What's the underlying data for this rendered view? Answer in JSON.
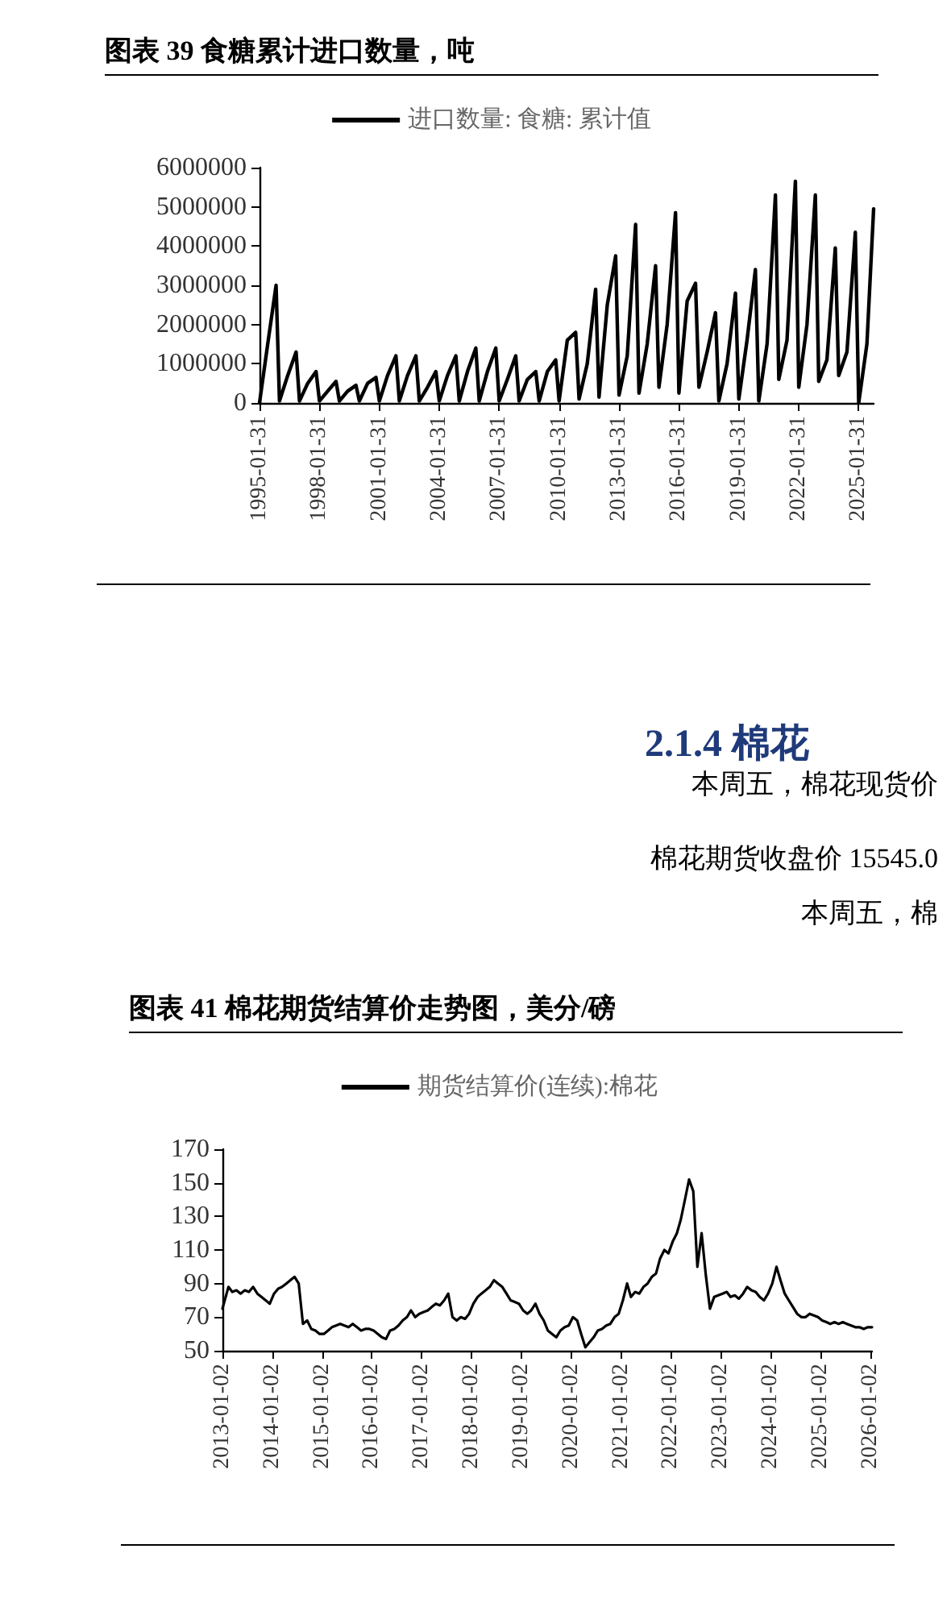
{
  "chart_data": [
    {
      "type": "line",
      "title": "图表 39 食糖累计进口数量，吨",
      "legend": "top",
      "grid": false,
      "marker": "none",
      "line_style": "solid",
      "xlim": [
        "1995-01-31",
        "2025-10-31"
      ],
      "xticks": [
        "1995-01-31",
        "1998-01-31",
        "2001-01-31",
        "2004-01-31",
        "2007-01-31",
        "2010-01-31",
        "2013-01-31",
        "2016-01-31",
        "2019-01-31",
        "2022-01-31",
        "2025-01-31"
      ],
      "ylim": [
        0,
        6000000
      ],
      "yticks": [
        0,
        1000000,
        2000000,
        3000000,
        4000000,
        5000000,
        6000000
      ],
      "series": [
        {
          "name": "进口数量: 食糖: 累计值",
          "color": "#000000",
          "x": [
            "1995-01-31",
            "1995-06-30",
            "1995-11-30",
            "1996-01-31",
            "1996-06-30",
            "1996-11-30",
            "1997-01-31",
            "1997-06-30",
            "1997-11-30",
            "1998-01-31",
            "1998-06-30",
            "1998-11-30",
            "1999-01-31",
            "1999-06-30",
            "1999-11-30",
            "2000-01-31",
            "2000-06-30",
            "2000-11-30",
            "2001-01-31",
            "2001-06-30",
            "2001-11-30",
            "2002-01-31",
            "2002-06-30",
            "2002-11-30",
            "2003-01-31",
            "2003-06-30",
            "2003-11-30",
            "2004-01-31",
            "2004-06-30",
            "2004-11-30",
            "2005-01-31",
            "2005-06-30",
            "2005-11-30",
            "2006-01-31",
            "2006-06-30",
            "2006-11-30",
            "2007-01-31",
            "2007-06-30",
            "2007-11-30",
            "2008-01-31",
            "2008-06-30",
            "2008-11-30",
            "2009-01-31",
            "2009-06-30",
            "2009-11-30",
            "2010-01-31",
            "2010-06-30",
            "2010-11-30",
            "2011-01-31",
            "2011-06-30",
            "2011-11-30",
            "2012-01-31",
            "2012-06-30",
            "2012-11-30",
            "2013-01-31",
            "2013-06-30",
            "2013-11-30",
            "2014-01-31",
            "2014-06-30",
            "2014-11-30",
            "2015-01-31",
            "2015-06-30",
            "2015-11-30",
            "2016-01-31",
            "2016-06-30",
            "2016-11-30",
            "2017-01-31",
            "2017-06-30",
            "2017-11-30",
            "2018-01-31",
            "2018-06-30",
            "2018-11-30",
            "2019-01-31",
            "2019-06-30",
            "2019-11-30",
            "2020-01-31",
            "2020-06-30",
            "2020-11-30",
            "2021-01-31",
            "2021-06-30",
            "2021-11-30",
            "2022-01-31",
            "2022-06-30",
            "2022-11-30",
            "2023-01-31",
            "2023-06-30",
            "2023-11-30",
            "2024-01-31",
            "2024-06-30",
            "2024-11-30",
            "2025-01-31",
            "2025-06-30",
            "2025-10-31"
          ],
          "values": [
            0,
            1500000,
            3000000,
            50000,
            700000,
            1300000,
            50000,
            500000,
            800000,
            50000,
            300000,
            550000,
            50000,
            300000,
            450000,
            50000,
            500000,
            650000,
            50000,
            700000,
            1200000,
            50000,
            700000,
            1200000,
            50000,
            400000,
            800000,
            50000,
            700000,
            1200000,
            50000,
            800000,
            1400000,
            50000,
            800000,
            1400000,
            50000,
            600000,
            1200000,
            50000,
            600000,
            800000,
            50000,
            800000,
            1100000,
            50000,
            1600000,
            1800000,
            100000,
            1000000,
            2900000,
            150000,
            2500000,
            3750000,
            200000,
            1200000,
            4550000,
            250000,
            1500000,
            3500000,
            400000,
            2000000,
            4850000,
            250000,
            2600000,
            3050000,
            400000,
            1300000,
            2300000,
            50000,
            1000000,
            2800000,
            100000,
            1600000,
            3400000,
            50000,
            1500000,
            5300000,
            600000,
            1600000,
            5650000,
            400000,
            2000000,
            5300000,
            550000,
            1100000,
            3950000,
            700000,
            1300000,
            4350000,
            0,
            1500000,
            4950000
          ]
        }
      ]
    },
    {
      "type": "other",
      "title": "2.1.4 棉花",
      "annotations": [
        "本周五，棉花现货价",
        "棉花期货收盘价 15545.0",
        "本周五，棉"
      ]
    },
    {
      "type": "line",
      "title": "图表 41 棉花期货结算价走势图，美分/磅",
      "legend": "top",
      "grid": false,
      "marker": "none",
      "line_style": "solid",
      "xlim": [
        "2013-01-02",
        "2026-01-15"
      ],
      "xticks": [
        "2013-01-02",
        "2014-01-02",
        "2015-01-02",
        "2016-01-02",
        "2017-01-02",
        "2018-01-02",
        "2019-01-02",
        "2020-01-02",
        "2021-01-02",
        "2022-01-02",
        "2023-01-02",
        "2024-01-02",
        "2025-01-02",
        "2026-01-02"
      ],
      "ylim": [
        50,
        170
      ],
      "yticks": [
        50,
        70,
        90,
        110,
        130,
        150,
        170
      ],
      "series": [
        {
          "name": "期货结算价(连续):棉花",
          "color": "#000000",
          "x": [
            "2013-01-02",
            "2013-02-15",
            "2013-03-15",
            "2013-04-15",
            "2013-05-15",
            "2013-06-15",
            "2013-07-15",
            "2013-08-15",
            "2013-09-15",
            "2013-10-15",
            "2013-11-15",
            "2013-12-15",
            "2014-01-15",
            "2014-02-15",
            "2014-03-15",
            "2014-04-15",
            "2014-05-15",
            "2014-06-15",
            "2014-07-15",
            "2014-08-15",
            "2014-09-15",
            "2014-10-15",
            "2014-11-15",
            "2014-12-15",
            "2015-01-15",
            "2015-02-15",
            "2015-03-15",
            "2015-04-15",
            "2015-05-15",
            "2015-06-15",
            "2015-07-15",
            "2015-08-15",
            "2015-09-15",
            "2015-10-15",
            "2015-11-15",
            "2015-12-15",
            "2016-01-15",
            "2016-02-15",
            "2016-03-15",
            "2016-04-15",
            "2016-05-15",
            "2016-06-15",
            "2016-07-15",
            "2016-08-15",
            "2016-09-15",
            "2016-10-15",
            "2016-11-15",
            "2016-12-15",
            "2017-01-15",
            "2017-02-15",
            "2017-03-15",
            "2017-04-15",
            "2017-05-15",
            "2017-06-15",
            "2017-07-15",
            "2017-08-15",
            "2017-09-15",
            "2017-10-15",
            "2017-11-15",
            "2017-12-15",
            "2018-01-15",
            "2018-02-15",
            "2018-03-15",
            "2018-04-15",
            "2018-05-15",
            "2018-06-15",
            "2018-07-15",
            "2018-08-15",
            "2018-09-15",
            "2018-10-15",
            "2018-11-15",
            "2018-12-15",
            "2019-01-15",
            "2019-02-15",
            "2019-03-15",
            "2019-04-15",
            "2019-05-15",
            "2019-06-15",
            "2019-07-15",
            "2019-08-15",
            "2019-09-15",
            "2019-10-15",
            "2019-11-15",
            "2019-12-15",
            "2020-01-15",
            "2020-02-15",
            "2020-03-15",
            "2020-04-15",
            "2020-05-15",
            "2020-06-15",
            "2020-07-15",
            "2020-08-15",
            "2020-09-15",
            "2020-10-15",
            "2020-11-15",
            "2020-12-15",
            "2021-01-15",
            "2021-02-15",
            "2021-03-15",
            "2021-04-15",
            "2021-05-15",
            "2021-06-15",
            "2021-07-15",
            "2021-08-15",
            "2021-09-15",
            "2021-10-15",
            "2021-11-15",
            "2021-12-15",
            "2022-01-15",
            "2022-02-15",
            "2022-03-15",
            "2022-04-15",
            "2022-05-15",
            "2022-06-15",
            "2022-07-15",
            "2022-08-15",
            "2022-09-15",
            "2022-10-15",
            "2022-11-15",
            "2022-12-15",
            "2023-01-15",
            "2023-02-15",
            "2023-03-15",
            "2023-04-15",
            "2023-05-15",
            "2023-06-15",
            "2023-07-15",
            "2023-08-15",
            "2023-09-15",
            "2023-10-15",
            "2023-11-15",
            "2023-12-15",
            "2024-01-15",
            "2024-02-15",
            "2024-03-15",
            "2024-04-15",
            "2024-05-15",
            "2024-06-15",
            "2024-07-15",
            "2024-08-15",
            "2024-09-15",
            "2024-10-15",
            "2024-11-15",
            "2024-12-15",
            "2025-01-15",
            "2025-02-15",
            "2025-03-15",
            "2025-04-15",
            "2025-05-15",
            "2025-06-15",
            "2025-07-15",
            "2025-08-15",
            "2025-09-15",
            "2025-10-15",
            "2025-11-15",
            "2025-12-15",
            "2026-01-15"
          ],
          "values": [
            75,
            88,
            85,
            86,
            84,
            86,
            85,
            88,
            84,
            82,
            80,
            78,
            84,
            87,
            88,
            90,
            92,
            94,
            90,
            66,
            68,
            63,
            62,
            60,
            60,
            62,
            64,
            65,
            66,
            65,
            64,
            66,
            64,
            62,
            63,
            63,
            62,
            60,
            58,
            57,
            62,
            63,
            65,
            68,
            70,
            74,
            70,
            72,
            73,
            74,
            76,
            78,
            77,
            80,
            84,
            70,
            68,
            70,
            69,
            72,
            78,
            82,
            84,
            86,
            88,
            92,
            90,
            88,
            84,
            80,
            79,
            78,
            74,
            72,
            74,
            78,
            72,
            68,
            62,
            60,
            58,
            62,
            64,
            65,
            70,
            68,
            60,
            52,
            55,
            58,
            62,
            63,
            65,
            66,
            70,
            72,
            80,
            90,
            82,
            85,
            84,
            88,
            90,
            94,
            96,
            105,
            110,
            108,
            115,
            120,
            128,
            140,
            152,
            145,
            100,
            120,
            95,
            75,
            82,
            83,
            84,
            85,
            82,
            83,
            81,
            84,
            88,
            86,
            85,
            82,
            80,
            84,
            90,
            100,
            92,
            84,
            80,
            76,
            72,
            70,
            70,
            72,
            71,
            70,
            68,
            67,
            66,
            67,
            66,
            67,
            66,
            65,
            64,
            64,
            63,
            64,
            64
          ]
        }
      ]
    }
  ]
}
